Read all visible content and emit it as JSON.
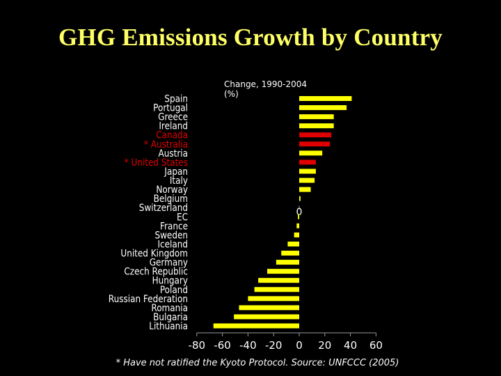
{
  "slide": {
    "title": "GHG Emissions Growth by Country",
    "footnote": "* Have not ratified the Kyoto Protocol. Source: UNFCCC (2005)"
  },
  "chart_data": {
    "type": "bar",
    "orientation": "horizontal",
    "title": "Change, 1990-2004 (%)",
    "title_lines": [
      "Change, 1990-2004",
      "(%)"
    ],
    "xlabel": "",
    "ylabel": "",
    "xlim": [
      -80,
      60
    ],
    "x_ticks": [
      "-80",
      "-60",
      "-40",
      "-20",
      "0",
      "20",
      "40",
      "60"
    ],
    "zero_label": "0",
    "grid": false,
    "legend": "none",
    "colors": {
      "default": "#ffff00",
      "highlight": "#e00000",
      "label": "#ffffff",
      "highlight_label": "#e00000",
      "axis": "#9a9a9a"
    },
    "categories": [
      "Spain",
      "Portugal",
      "Greece",
      "Ireland",
      "Canada",
      "* Australia",
      "Austria",
      "* United States",
      "Japan",
      "Italy",
      "Norway",
      "Belgium",
      "Switzerland",
      "EC",
      "France",
      "Sweden",
      "Iceland",
      "United Kingdom",
      "Germany",
      "Czech Republic",
      "Hungary",
      "Poland",
      "Russian Federation",
      "Romania",
      "Bulgaria",
      "Lithuania"
    ],
    "values": [
      41,
      37,
      27,
      27,
      25,
      24,
      18,
      13,
      13,
      12,
      9,
      1,
      0,
      -1,
      -2,
      -4,
      -9,
      -14,
      -18,
      -25,
      -32,
      -35,
      -40,
      -47,
      -51,
      -67
    ],
    "highlighted": [
      false,
      false,
      false,
      false,
      true,
      true,
      false,
      true,
      false,
      false,
      false,
      false,
      false,
      false,
      false,
      false,
      false,
      false,
      false,
      false,
      false,
      false,
      false,
      false,
      false,
      false
    ]
  }
}
